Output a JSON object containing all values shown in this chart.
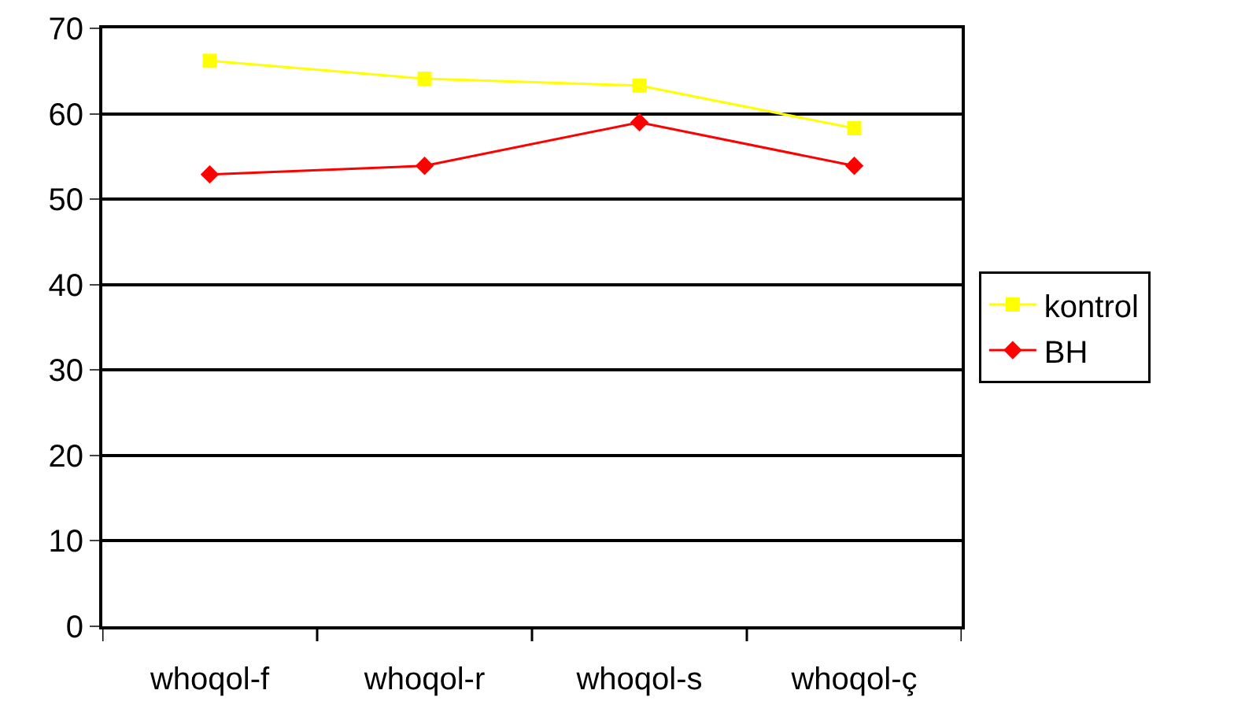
{
  "chart_data": {
    "type": "line",
    "categories": [
      "whoqol-f",
      "whoqol-r",
      "whoqol-s",
      "whoqol-ç"
    ],
    "series": [
      {
        "name": "kontrol",
        "color": "#ffff00",
        "marker": "square",
        "values": [
          66.2,
          64.1,
          63.3,
          58.3
        ]
      },
      {
        "name": "BH",
        "color": "#ff0000",
        "marker": "diamond",
        "values": [
          52.9,
          53.9,
          59.0,
          53.9
        ]
      }
    ],
    "ylim": [
      0,
      70
    ],
    "yticks": [
      0,
      10,
      20,
      30,
      40,
      50,
      60,
      70
    ],
    "grid": "y",
    "legend": "right",
    "line_style": "solid"
  }
}
